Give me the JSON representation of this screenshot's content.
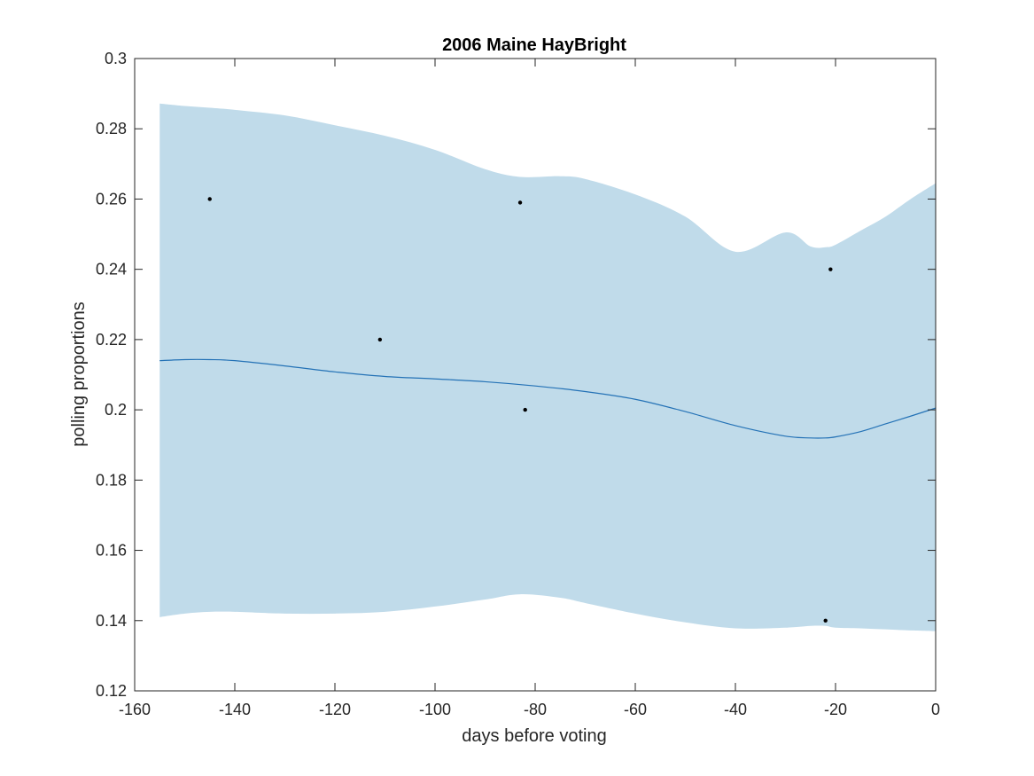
{
  "chart_data": {
    "type": "line",
    "title": "2006 Maine HayBright",
    "xlabel": "days before voting",
    "ylabel": "polling proportions",
    "xlim": [
      -160,
      0
    ],
    "ylim": [
      0.12,
      0.3
    ],
    "xticks": [
      -160,
      -140,
      -120,
      -100,
      -80,
      -60,
      -40,
      -20,
      0
    ],
    "xtick_labels": [
      "-160",
      "-140",
      "-120",
      "-100",
      "-80",
      "-60",
      "-40",
      "-20",
      "0"
    ],
    "yticks": [
      0.12,
      0.14,
      0.16,
      0.18,
      0.2,
      0.22,
      0.24,
      0.26,
      0.28,
      0.3
    ],
    "ytick_labels": [
      "0.12",
      "0.14",
      "0.16",
      "0.18",
      "0.2",
      "0.22",
      "0.24",
      "0.26",
      "0.28",
      "0.3"
    ],
    "grid": false,
    "band": {
      "x": [
        -155,
        -150,
        -145,
        -140,
        -130,
        -120,
        -110,
        -100,
        -90,
        -83,
        -75,
        -70,
        -60,
        -50,
        -40,
        -30,
        -25,
        -22,
        -20,
        -15,
        -10,
        -5,
        0
      ],
      "upper": [
        0.2872,
        0.2865,
        0.286,
        0.2854,
        0.2838,
        0.281,
        0.278,
        0.274,
        0.2685,
        0.2663,
        0.2665,
        0.2657,
        0.2613,
        0.255,
        0.245,
        0.2505,
        0.2465,
        0.2463,
        0.247,
        0.251,
        0.255,
        0.26,
        0.2645
      ],
      "lower": [
        0.141,
        0.142,
        0.1425,
        0.1425,
        0.142,
        0.142,
        0.1425,
        0.144,
        0.146,
        0.1475,
        0.1465,
        0.145,
        0.142,
        0.1395,
        0.1378,
        0.138,
        0.1385,
        0.1385,
        0.138,
        0.1378,
        0.1375,
        0.1372,
        0.137
      ],
      "color": "#c0dbea"
    },
    "series": [
      {
        "type": "line",
        "x": [
          -155,
          -150,
          -145,
          -140,
          -130,
          -120,
          -110,
          -100,
          -90,
          -80,
          -70,
          -60,
          -50,
          -40,
          -30,
          -25,
          -22,
          -20,
          -15,
          -10,
          -5,
          0
        ],
        "y": [
          0.214,
          0.2143,
          0.2143,
          0.214,
          0.2125,
          0.2108,
          0.2095,
          0.2088,
          0.208,
          0.2068,
          0.2052,
          0.203,
          0.1995,
          0.1955,
          0.1925,
          0.192,
          0.192,
          0.1923,
          0.1938,
          0.196,
          0.1982,
          0.2005
        ],
        "color": "#2472b6"
      },
      {
        "type": "scatter",
        "x": [
          -145,
          -111,
          -83,
          -82,
          -21,
          -22
        ],
        "y": [
          0.26,
          0.22,
          0.259,
          0.2,
          0.24,
          0.14
        ],
        "color": "#000000"
      }
    ]
  }
}
